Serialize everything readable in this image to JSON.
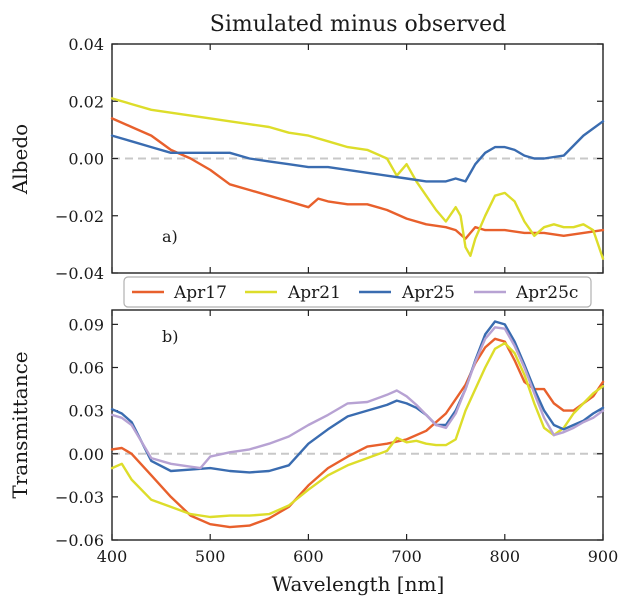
{
  "chart_data": [
    {
      "type": "line",
      "panel_label": "a)",
      "title": "Simulated minus observed",
      "xlabel": "",
      "ylabel": "Albedo",
      "xlim": [
        400,
        900
      ],
      "ylim": [
        -0.04,
        0.04
      ],
      "yticks": [
        -0.04,
        -0.02,
        0.0,
        0.02,
        0.04
      ],
      "ytick_labels": [
        "−0.04",
        "−0.02",
        "0.00",
        "0.02",
        "0.04"
      ],
      "zero_line": true,
      "series": [
        {
          "name": "Apr17",
          "color": "#E8602C",
          "x": [
            400,
            420,
            440,
            460,
            480,
            500,
            520,
            540,
            560,
            580,
            590,
            600,
            610,
            620,
            640,
            660,
            680,
            700,
            720,
            740,
            750,
            760,
            765,
            770,
            780,
            800,
            820,
            840,
            860,
            880,
            900
          ],
          "y": [
            0.014,
            0.011,
            0.008,
            0.003,
            0.0,
            -0.004,
            -0.009,
            -0.011,
            -0.013,
            -0.015,
            -0.016,
            -0.017,
            -0.014,
            -0.015,
            -0.016,
            -0.016,
            -0.018,
            -0.021,
            -0.023,
            -0.024,
            -0.025,
            -0.028,
            -0.026,
            -0.024,
            -0.025,
            -0.025,
            -0.026,
            -0.026,
            -0.027,
            -0.026,
            -0.025
          ]
        },
        {
          "name": "Apr21",
          "color": "#DDDD2A",
          "x": [
            400,
            420,
            440,
            460,
            480,
            500,
            520,
            540,
            560,
            580,
            600,
            620,
            640,
            660,
            680,
            690,
            700,
            710,
            720,
            730,
            740,
            750,
            755,
            760,
            765,
            770,
            780,
            790,
            800,
            810,
            820,
            830,
            840,
            850,
            860,
            870,
            880,
            890,
            900
          ],
          "y": [
            0.021,
            0.019,
            0.017,
            0.016,
            0.015,
            0.014,
            0.013,
            0.012,
            0.011,
            0.009,
            0.008,
            0.006,
            0.004,
            0.003,
            0.0,
            -0.006,
            -0.002,
            -0.008,
            -0.013,
            -0.018,
            -0.022,
            -0.017,
            -0.02,
            -0.031,
            -0.034,
            -0.028,
            -0.02,
            -0.013,
            -0.012,
            -0.015,
            -0.022,
            -0.027,
            -0.024,
            -0.023,
            -0.024,
            -0.024,
            -0.023,
            -0.025,
            -0.035
          ]
        },
        {
          "name": "Apr25",
          "color": "#3A6CB0",
          "x": [
            400,
            420,
            440,
            460,
            480,
            500,
            520,
            540,
            560,
            580,
            600,
            620,
            640,
            660,
            680,
            700,
            720,
            740,
            750,
            760,
            770,
            780,
            790,
            800,
            810,
            820,
            830,
            840,
            860,
            880,
            900
          ],
          "y": [
            0.008,
            0.006,
            0.004,
            0.002,
            0.002,
            0.002,
            0.002,
            0.0,
            -0.001,
            -0.002,
            -0.003,
            -0.003,
            -0.004,
            -0.005,
            -0.006,
            -0.007,
            -0.008,
            -0.008,
            -0.007,
            -0.008,
            -0.002,
            0.002,
            0.004,
            0.004,
            0.003,
            0.001,
            0.0,
            0.0,
            0.001,
            0.008,
            0.013
          ]
        }
      ]
    },
    {
      "type": "line",
      "panel_label": "b)",
      "title": "",
      "xlabel": "Wavelength [nm]",
      "ylabel": "Transmittance",
      "xlim": [
        400,
        900
      ],
      "ylim": [
        -0.06,
        0.1
      ],
      "xticks": [
        400,
        500,
        600,
        700,
        800,
        900
      ],
      "xtick_labels": [
        "400",
        "500",
        "600",
        "700",
        "800",
        "900"
      ],
      "yticks": [
        -0.06,
        -0.03,
        0.0,
        0.03,
        0.06,
        0.09
      ],
      "ytick_labels": [
        "−0.06",
        "−0.03",
        "0.00",
        "0.03",
        "0.06",
        "0.09"
      ],
      "zero_line": true,
      "series": [
        {
          "name": "Apr17",
          "color": "#E8602C",
          "x": [
            400,
            410,
            420,
            440,
            460,
            480,
            500,
            520,
            540,
            560,
            580,
            600,
            620,
            640,
            660,
            680,
            700,
            720,
            740,
            760,
            770,
            780,
            790,
            800,
            810,
            820,
            830,
            840,
            850,
            860,
            870,
            880,
            890,
            900
          ],
          "y": [
            0.003,
            0.004,
            0.0,
            -0.015,
            -0.03,
            -0.043,
            -0.049,
            -0.051,
            -0.05,
            -0.045,
            -0.037,
            -0.022,
            -0.01,
            -0.002,
            0.005,
            0.007,
            0.01,
            0.016,
            0.028,
            0.048,
            0.063,
            0.074,
            0.08,
            0.078,
            0.065,
            0.05,
            0.045,
            0.045,
            0.035,
            0.03,
            0.03,
            0.035,
            0.04,
            0.05
          ]
        },
        {
          "name": "Apr21",
          "color": "#DDDD2A",
          "x": [
            400,
            410,
            420,
            440,
            460,
            480,
            500,
            520,
            540,
            560,
            580,
            600,
            620,
            640,
            660,
            680,
            690,
            700,
            710,
            720,
            730,
            740,
            750,
            760,
            770,
            780,
            790,
            800,
            810,
            820,
            830,
            840,
            850,
            860,
            870,
            880,
            890,
            900
          ],
          "y": [
            -0.01,
            -0.007,
            -0.018,
            -0.032,
            -0.037,
            -0.042,
            -0.044,
            -0.043,
            -0.043,
            -0.042,
            -0.036,
            -0.025,
            -0.015,
            -0.008,
            -0.003,
            0.002,
            0.011,
            0.008,
            0.009,
            0.007,
            0.006,
            0.006,
            0.01,
            0.03,
            0.045,
            0.06,
            0.073,
            0.077,
            0.07,
            0.055,
            0.035,
            0.018,
            0.013,
            0.018,
            0.028,
            0.035,
            0.042,
            0.047
          ]
        },
        {
          "name": "Apr25",
          "color": "#3A6CB0",
          "x": [
            400,
            410,
            420,
            440,
            460,
            480,
            500,
            520,
            540,
            560,
            580,
            600,
            620,
            640,
            660,
            680,
            690,
            700,
            710,
            720,
            730,
            740,
            750,
            760,
            770,
            780,
            790,
            800,
            810,
            820,
            830,
            840,
            850,
            860,
            870,
            880,
            890,
            900
          ],
          "y": [
            0.031,
            0.028,
            0.022,
            -0.005,
            -0.012,
            -0.011,
            -0.01,
            -0.012,
            -0.013,
            -0.012,
            -0.008,
            0.007,
            0.017,
            0.026,
            0.03,
            0.034,
            0.037,
            0.035,
            0.032,
            0.027,
            0.02,
            0.02,
            0.03,
            0.045,
            0.065,
            0.083,
            0.092,
            0.09,
            0.078,
            0.062,
            0.045,
            0.03,
            0.02,
            0.017,
            0.02,
            0.023,
            0.028,
            0.032
          ]
        },
        {
          "name": "Apr25c",
          "color": "#B7A2D3",
          "x": [
            400,
            410,
            420,
            440,
            460,
            480,
            490,
            500,
            520,
            540,
            560,
            580,
            600,
            620,
            640,
            660,
            680,
            690,
            700,
            710,
            720,
            730,
            740,
            750,
            760,
            770,
            780,
            790,
            800,
            810,
            820,
            830,
            840,
            850,
            860,
            870,
            880,
            890,
            900
          ],
          "y": [
            0.027,
            0.025,
            0.02,
            -0.003,
            -0.007,
            -0.009,
            -0.01,
            -0.002,
            0.001,
            0.003,
            0.007,
            0.012,
            0.02,
            0.027,
            0.035,
            0.036,
            0.041,
            0.044,
            0.04,
            0.034,
            0.027,
            0.02,
            0.018,
            0.028,
            0.045,
            0.064,
            0.08,
            0.088,
            0.087,
            0.075,
            0.06,
            0.042,
            0.025,
            0.013,
            0.015,
            0.018,
            0.022,
            0.025,
            0.03
          ]
        }
      ]
    }
  ],
  "legend": {
    "placement": "between-panels",
    "entries": [
      {
        "name": "Apr17",
        "color": "#E8602C"
      },
      {
        "name": "Apr21",
        "color": "#DDDD2A"
      },
      {
        "name": "Apr25",
        "color": "#3A6CB0"
      },
      {
        "name": "Apr25c",
        "color": "#B7A2D3"
      }
    ]
  }
}
